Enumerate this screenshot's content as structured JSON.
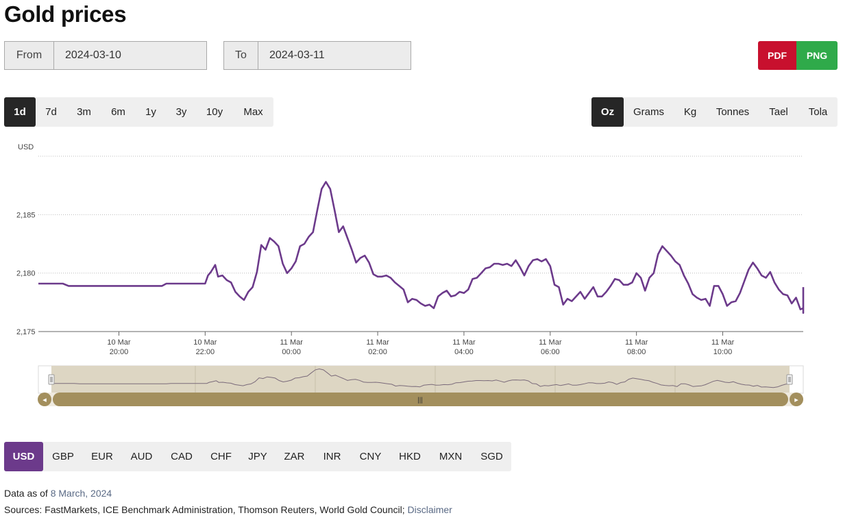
{
  "page": {
    "title": "Gold prices"
  },
  "date_range": {
    "from_label": "From",
    "from_value": "2024-03-10",
    "to_label": "To",
    "to_value": "2024-03-11"
  },
  "export": {
    "pdf_label": "PDF",
    "png_label": "PNG",
    "pdf_color": "#c8102e",
    "png_color": "#2faa4a"
  },
  "range_options": [
    {
      "label": "1d",
      "active": true
    },
    {
      "label": "7d",
      "active": false
    },
    {
      "label": "3m",
      "active": false
    },
    {
      "label": "6m",
      "active": false
    },
    {
      "label": "1y",
      "active": false
    },
    {
      "label": "3y",
      "active": false
    },
    {
      "label": "10y",
      "active": false
    },
    {
      "label": "Max",
      "active": false
    }
  ],
  "unit_options": [
    {
      "label": "Oz",
      "active": true
    },
    {
      "label": "Grams",
      "active": false
    },
    {
      "label": "Kg",
      "active": false
    },
    {
      "label": "Tonnes",
      "active": false
    },
    {
      "label": "Tael",
      "active": false
    },
    {
      "label": "Tola",
      "active": false
    }
  ],
  "currency_options": [
    {
      "label": "USD",
      "active": true
    },
    {
      "label": "GBP",
      "active": false
    },
    {
      "label": "EUR",
      "active": false
    },
    {
      "label": "AUD",
      "active": false
    },
    {
      "label": "CAD",
      "active": false
    },
    {
      "label": "CHF",
      "active": false
    },
    {
      "label": "JPY",
      "active": false
    },
    {
      "label": "ZAR",
      "active": false
    },
    {
      "label": "INR",
      "active": false
    },
    {
      "label": "CNY",
      "active": false
    },
    {
      "label": "HKD",
      "active": false
    },
    {
      "label": "MXN",
      "active": false
    },
    {
      "label": "SGD",
      "active": false
    }
  ],
  "footer": {
    "as_of_prefix": "Data as of ",
    "as_of_date": "8 March, 2024",
    "sources_text": "Sources: FastMarkets, ICE Benchmark Administration, Thomson Reuters, World Gold Council; ",
    "disclaimer_label": "Disclaimer"
  },
  "chart_data": {
    "type": "line",
    "ylabel": "USD",
    "line_color": "#6c3a8b",
    "ylim": [
      2175,
      2190
    ],
    "yticks": [
      2175,
      2180,
      2185
    ],
    "ytick_labels": [
      "2,175",
      "2,180",
      "2,185"
    ],
    "xlim": [
      "2024-03-10T18:08",
      "2024-03-11T11:52"
    ],
    "xticks": [
      {
        "t": "2024-03-10T20:00",
        "line1": "10 Mar",
        "line2": "20:00"
      },
      {
        "t": "2024-03-10T22:00",
        "line1": "10 Mar",
        "line2": "22:00"
      },
      {
        "t": "2024-03-11T00:00",
        "line1": "11 Mar",
        "line2": "00:00"
      },
      {
        "t": "2024-03-11T02:00",
        "line1": "11 Mar",
        "line2": "02:00"
      },
      {
        "t": "2024-03-11T04:00",
        "line1": "11 Mar",
        "line2": "04:00"
      },
      {
        "t": "2024-03-11T06:00",
        "line1": "11 Mar",
        "line2": "06:00"
      },
      {
        "t": "2024-03-11T08:00",
        "line1": "11 Mar",
        "line2": "08:00"
      },
      {
        "t": "2024-03-11T10:00",
        "line1": "11 Mar",
        "line2": "10:00"
      }
    ],
    "grid": true,
    "series": [
      {
        "points": [
          [
            "2024-03-10T18:08",
            2179.1
          ],
          [
            "2024-03-10T18:42",
            2179.1
          ],
          [
            "2024-03-10T18:50",
            2178.9
          ],
          [
            "2024-03-10T20:00",
            2178.9
          ],
          [
            "2024-03-10T21:00",
            2178.9
          ],
          [
            "2024-03-10T21:06",
            2179.1
          ],
          [
            "2024-03-10T21:30",
            2179.1
          ],
          [
            "2024-03-10T22:00",
            2179.1
          ],
          [
            "2024-03-10T22:04",
            2179.8
          ],
          [
            "2024-03-10T22:08",
            2180.1
          ],
          [
            "2024-03-10T22:14",
            2180.7
          ],
          [
            "2024-03-10T22:18",
            2179.7
          ],
          [
            "2024-03-10T22:24",
            2179.8
          ],
          [
            "2024-03-10T22:30",
            2179.4
          ],
          [
            "2024-03-10T22:36",
            2179.2
          ],
          [
            "2024-03-10T22:42",
            2178.4
          ],
          [
            "2024-03-10T22:48",
            2178.0
          ],
          [
            "2024-03-10T22:54",
            2177.7
          ],
          [
            "2024-03-10T23:00",
            2178.4
          ],
          [
            "2024-03-10T23:06",
            2178.8
          ],
          [
            "2024-03-10T23:12",
            2180.1
          ],
          [
            "2024-03-10T23:18",
            2182.4
          ],
          [
            "2024-03-10T23:24",
            2182.0
          ],
          [
            "2024-03-10T23:30",
            2183.0
          ],
          [
            "2024-03-10T23:36",
            2182.7
          ],
          [
            "2024-03-10T23:42",
            2182.3
          ],
          [
            "2024-03-10T23:48",
            2180.8
          ],
          [
            "2024-03-10T23:54",
            2180.0
          ],
          [
            "2024-03-11T00:00",
            2180.4
          ],
          [
            "2024-03-11T00:06",
            2181.0
          ],
          [
            "2024-03-11T00:12",
            2182.3
          ],
          [
            "2024-03-11T00:18",
            2182.5
          ],
          [
            "2024-03-11T00:24",
            2183.1
          ],
          [
            "2024-03-11T00:30",
            2183.5
          ],
          [
            "2024-03-11T00:36",
            2185.4
          ],
          [
            "2024-03-11T00:42",
            2187.2
          ],
          [
            "2024-03-11T00:48",
            2187.8
          ],
          [
            "2024-03-11T00:54",
            2187.2
          ],
          [
            "2024-03-11T01:00",
            2185.4
          ],
          [
            "2024-03-11T01:06",
            2183.5
          ],
          [
            "2024-03-11T01:12",
            2184.0
          ],
          [
            "2024-03-11T01:18",
            2183.0
          ],
          [
            "2024-03-11T01:24",
            2182.0
          ],
          [
            "2024-03-11T01:30",
            2180.9
          ],
          [
            "2024-03-11T01:36",
            2181.3
          ],
          [
            "2024-03-11T01:42",
            2181.5
          ],
          [
            "2024-03-11T01:48",
            2180.9
          ],
          [
            "2024-03-11T01:54",
            2179.9
          ],
          [
            "2024-03-11T02:00",
            2179.7
          ],
          [
            "2024-03-11T02:06",
            2179.7
          ],
          [
            "2024-03-11T02:12",
            2179.8
          ],
          [
            "2024-03-11T02:18",
            2179.6
          ],
          [
            "2024-03-11T02:24",
            2179.2
          ],
          [
            "2024-03-11T02:30",
            2178.9
          ],
          [
            "2024-03-11T02:36",
            2178.6
          ],
          [
            "2024-03-11T02:42",
            2177.5
          ],
          [
            "2024-03-11T02:48",
            2177.8
          ],
          [
            "2024-03-11T02:54",
            2177.7
          ],
          [
            "2024-03-11T03:00",
            2177.4
          ],
          [
            "2024-03-11T03:06",
            2177.2
          ],
          [
            "2024-03-11T03:12",
            2177.3
          ],
          [
            "2024-03-11T03:18",
            2177.0
          ],
          [
            "2024-03-11T03:24",
            2178.0
          ],
          [
            "2024-03-11T03:30",
            2178.3
          ],
          [
            "2024-03-11T03:36",
            2178.5
          ],
          [
            "2024-03-11T03:42",
            2178.0
          ],
          [
            "2024-03-11T03:48",
            2178.1
          ],
          [
            "2024-03-11T03:54",
            2178.4
          ],
          [
            "2024-03-11T04:00",
            2178.3
          ],
          [
            "2024-03-11T04:06",
            2178.6
          ],
          [
            "2024-03-11T04:12",
            2179.5
          ],
          [
            "2024-03-11T04:18",
            2179.6
          ],
          [
            "2024-03-11T04:24",
            2180.0
          ],
          [
            "2024-03-11T04:30",
            2180.4
          ],
          [
            "2024-03-11T04:36",
            2180.5
          ],
          [
            "2024-03-11T04:42",
            2180.8
          ],
          [
            "2024-03-11T04:48",
            2180.8
          ],
          [
            "2024-03-11T04:54",
            2180.7
          ],
          [
            "2024-03-11T05:00",
            2180.8
          ],
          [
            "2024-03-11T05:06",
            2180.6
          ],
          [
            "2024-03-11T05:12",
            2181.1
          ],
          [
            "2024-03-11T05:18",
            2180.5
          ],
          [
            "2024-03-11T05:24",
            2179.8
          ],
          [
            "2024-03-11T05:30",
            2180.6
          ],
          [
            "2024-03-11T05:36",
            2181.1
          ],
          [
            "2024-03-11T05:42",
            2181.2
          ],
          [
            "2024-03-11T05:48",
            2181.0
          ],
          [
            "2024-03-11T05:54",
            2181.2
          ],
          [
            "2024-03-11T06:00",
            2180.6
          ],
          [
            "2024-03-11T06:06",
            2179.0
          ],
          [
            "2024-03-11T06:12",
            2178.8
          ],
          [
            "2024-03-11T06:18",
            2177.3
          ],
          [
            "2024-03-11T06:24",
            2177.8
          ],
          [
            "2024-03-11T06:30",
            2177.6
          ],
          [
            "2024-03-11T06:36",
            2178.0
          ],
          [
            "2024-03-11T06:42",
            2178.4
          ],
          [
            "2024-03-11T06:48",
            2177.8
          ],
          [
            "2024-03-11T06:54",
            2178.3
          ],
          [
            "2024-03-11T07:00",
            2178.8
          ],
          [
            "2024-03-11T07:06",
            2178.0
          ],
          [
            "2024-03-11T07:12",
            2178.0
          ],
          [
            "2024-03-11T07:18",
            2178.4
          ],
          [
            "2024-03-11T07:24",
            2178.9
          ],
          [
            "2024-03-11T07:30",
            2179.5
          ],
          [
            "2024-03-11T07:36",
            2179.4
          ],
          [
            "2024-03-11T07:42",
            2179.0
          ],
          [
            "2024-03-11T07:48",
            2179.0
          ],
          [
            "2024-03-11T07:54",
            2179.2
          ],
          [
            "2024-03-11T08:00",
            2180.0
          ],
          [
            "2024-03-11T08:06",
            2179.6
          ],
          [
            "2024-03-11T08:12",
            2178.5
          ],
          [
            "2024-03-11T08:18",
            2179.6
          ],
          [
            "2024-03-11T08:24",
            2180.0
          ],
          [
            "2024-03-11T08:30",
            2181.6
          ],
          [
            "2024-03-11T08:36",
            2182.3
          ],
          [
            "2024-03-11T08:42",
            2181.9
          ],
          [
            "2024-03-11T08:48",
            2181.5
          ],
          [
            "2024-03-11T08:54",
            2181.0
          ],
          [
            "2024-03-11T09:00",
            2180.7
          ],
          [
            "2024-03-11T09:06",
            2179.8
          ],
          [
            "2024-03-11T09:12",
            2179.1
          ],
          [
            "2024-03-11T09:18",
            2178.2
          ],
          [
            "2024-03-11T09:24",
            2177.9
          ],
          [
            "2024-03-11T09:30",
            2177.7
          ],
          [
            "2024-03-11T09:36",
            2177.8
          ],
          [
            "2024-03-11T09:42",
            2177.2
          ],
          [
            "2024-03-11T09:48",
            2178.9
          ],
          [
            "2024-03-11T09:54",
            2178.9
          ],
          [
            "2024-03-11T10:00",
            2178.2
          ],
          [
            "2024-03-11T10:06",
            2177.2
          ],
          [
            "2024-03-11T10:12",
            2177.5
          ],
          [
            "2024-03-11T10:18",
            2177.6
          ],
          [
            "2024-03-11T10:24",
            2178.3
          ],
          [
            "2024-03-11T10:30",
            2179.3
          ],
          [
            "2024-03-11T10:36",
            2180.3
          ],
          [
            "2024-03-11T10:42",
            2180.9
          ],
          [
            "2024-03-11T10:48",
            2180.4
          ],
          [
            "2024-03-11T10:54",
            2179.8
          ],
          [
            "2024-03-11T11:00",
            2179.6
          ],
          [
            "2024-03-11T11:06",
            2180.1
          ],
          [
            "2024-03-11T11:12",
            2179.2
          ],
          [
            "2024-03-11T11:18",
            2178.6
          ],
          [
            "2024-03-11T11:24",
            2178.2
          ],
          [
            "2024-03-11T11:30",
            2178.1
          ],
          [
            "2024-03-11T11:36",
            2177.4
          ],
          [
            "2024-03-11T11:42",
            2177.9
          ],
          [
            "2024-03-11T11:48",
            2176.9
          ],
          [
            "2024-03-11T11:54",
            2177.0
          ],
          [
            "2024-03-11T12:00",
            2176.8
          ],
          [
            "2024-03-11T12:06",
            2176.6
          ],
          [
            "2024-03-11T12:12",
            2177.0
          ],
          [
            "2024-03-11T12:18",
            2177.9
          ],
          [
            "2024-03-11T12:24",
            2178.6
          ],
          [
            "2024-03-11T12:30",
            2178.8
          ]
        ]
      }
    ],
    "navigator": {
      "handle_glyph": "|||",
      "left_arrow": "◂",
      "right_arrow": "▸"
    }
  }
}
